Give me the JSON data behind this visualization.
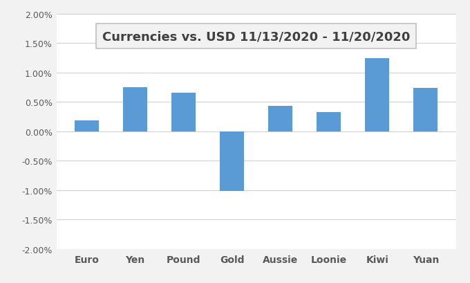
{
  "title": "Currencies vs. USD 11/13/2020 - 11/20/2020",
  "categories": [
    "Euro",
    "Yen",
    "Pound",
    "Gold",
    "Aussie",
    "Loonie",
    "Kiwi",
    "Yuan"
  ],
  "values": [
    0.0018,
    0.0075,
    0.0066,
    -0.0102,
    0.0043,
    0.0032,
    0.0124,
    0.0074
  ],
  "bar_color": "#5B9BD5",
  "ylim": [
    -0.02,
    0.02
  ],
  "yticks": [
    -0.02,
    -0.015,
    -0.01,
    -0.005,
    0.0,
    0.005,
    0.01,
    0.015,
    0.02
  ],
  "ytick_labels": [
    "-2.00%",
    "-1.50%",
    "-1.00%",
    "-0.50%",
    "0.00%",
    "0.50%",
    "1.00%",
    "1.50%",
    "2.00%"
  ],
  "background_color": "#F2F2F2",
  "plot_bg_color": "#FFFFFF",
  "grid_color": "#D0D0D0",
  "title_fontsize": 13,
  "title_box_color": "#F2F2F2",
  "title_box_edge": "#C0C0C0",
  "tick_label_color": "#595959",
  "bar_width": 0.5
}
